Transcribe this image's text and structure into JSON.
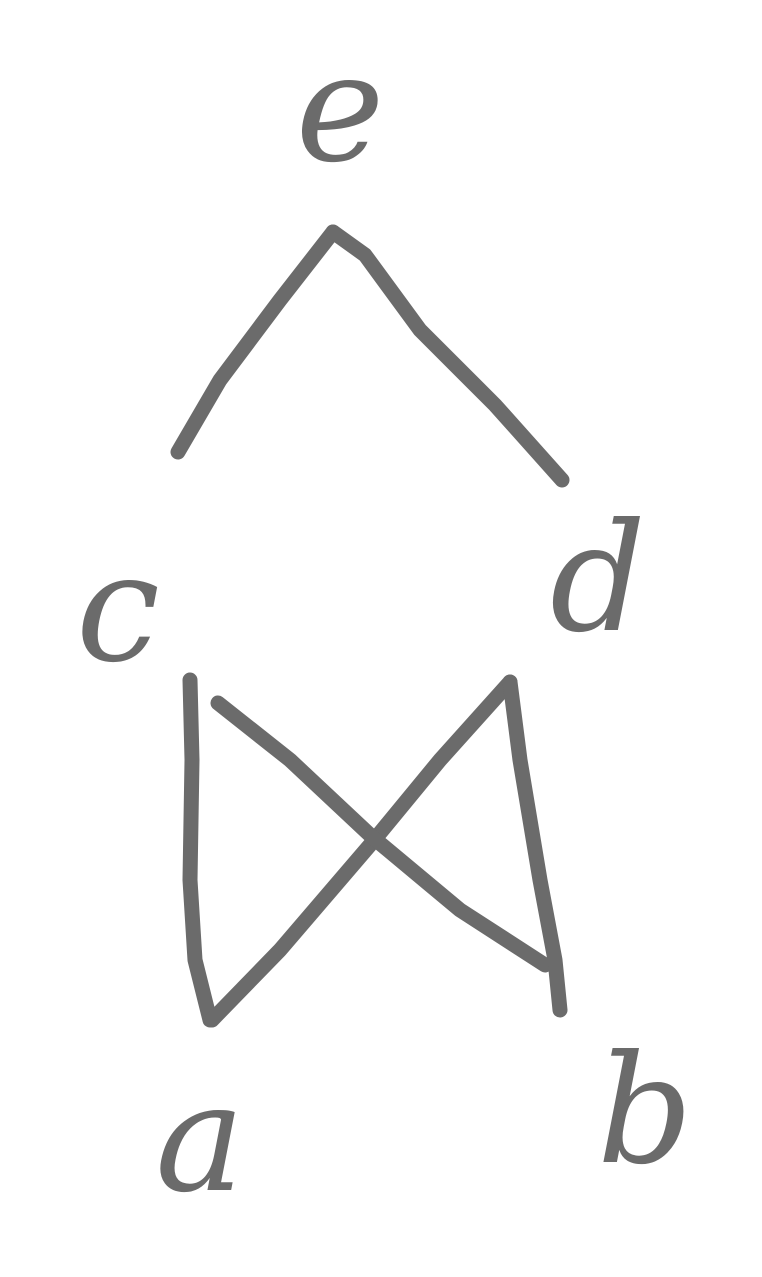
{
  "diagram": {
    "nodes": [
      {
        "id": "e",
        "label": "e"
      },
      {
        "id": "c",
        "label": "c"
      },
      {
        "id": "d",
        "label": "d"
      },
      {
        "id": "a",
        "label": "a"
      },
      {
        "id": "b",
        "label": "b"
      }
    ],
    "edges": [
      {
        "from": "c",
        "to": "e"
      },
      {
        "from": "d",
        "to": "e"
      },
      {
        "from": "a",
        "to": "c"
      },
      {
        "from": "a",
        "to": "d"
      },
      {
        "from": "b",
        "to": "c"
      },
      {
        "from": "b",
        "to": "d"
      }
    ],
    "stroke_color": "#6b6b6b",
    "background_color": "#ffffff"
  }
}
